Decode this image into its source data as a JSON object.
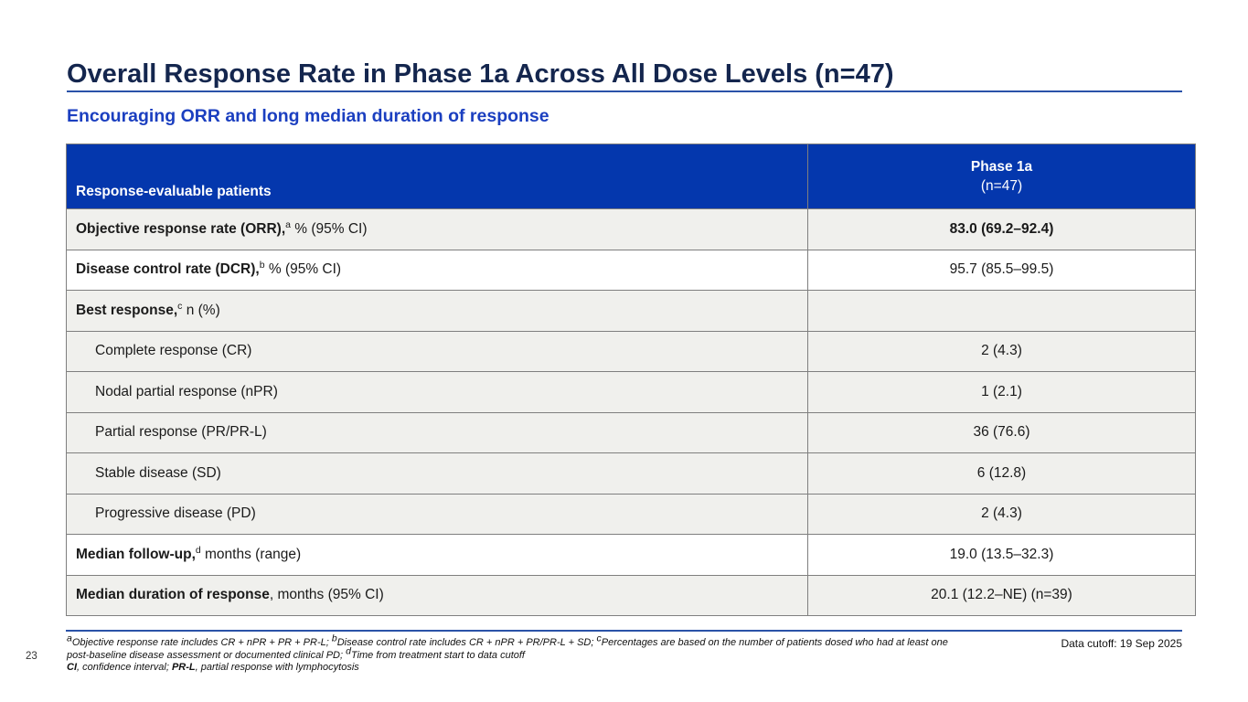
{
  "title": "Overall Response Rate in Phase 1a Across All Dose Levels (n=47)",
  "subtitle": "Encouraging ORR and long median duration of response",
  "table": {
    "header": {
      "left": "Response-evaluable patients",
      "right_line1": "Phase 1a",
      "right_line2": "(n=47)"
    },
    "rows": [
      {
        "segments": [
          {
            "t": "bold",
            "v": "Objective response rate (ORR),"
          },
          {
            "t": "sup",
            "v": "a"
          },
          {
            "t": "text",
            "v": " % (95% CI)"
          }
        ],
        "value": "83.0 (69.2–92.4)",
        "value_bold": true,
        "shade": "gray",
        "indent": false
      },
      {
        "segments": [
          {
            "t": "bold",
            "v": "Disease control rate (DCR),"
          },
          {
            "t": "sup",
            "v": "b"
          },
          {
            "t": "text",
            "v": " % (95% CI)"
          }
        ],
        "value": "95.7 (85.5–99.5)",
        "value_bold": false,
        "shade": "white",
        "indent": false
      },
      {
        "segments": [
          {
            "t": "bold",
            "v": "Best response,"
          },
          {
            "t": "sup",
            "v": "c"
          },
          {
            "t": "text",
            "v": " n (%)"
          }
        ],
        "value": "",
        "value_bold": false,
        "shade": "gray",
        "indent": false
      },
      {
        "segments": [
          {
            "t": "text",
            "v": "Complete response (CR)"
          }
        ],
        "value": "2 (4.3)",
        "value_bold": false,
        "shade": "gray",
        "indent": true
      },
      {
        "segments": [
          {
            "t": "text",
            "v": "Nodal partial response (nPR)"
          }
        ],
        "value": "1 (2.1)",
        "value_bold": false,
        "shade": "gray",
        "indent": true
      },
      {
        "segments": [
          {
            "t": "text",
            "v": "Partial response (PR/PR-L)"
          }
        ],
        "value": "36 (76.6)",
        "value_bold": false,
        "shade": "gray",
        "indent": true
      },
      {
        "segments": [
          {
            "t": "text",
            "v": "Stable disease (SD)"
          }
        ],
        "value": "6 (12.8)",
        "value_bold": false,
        "shade": "gray",
        "indent": true
      },
      {
        "segments": [
          {
            "t": "text",
            "v": "Progressive disease (PD)"
          }
        ],
        "value": "2 (4.3)",
        "value_bold": false,
        "shade": "gray",
        "indent": true
      },
      {
        "segments": [
          {
            "t": "bold",
            "v": "Median follow-up,"
          },
          {
            "t": "sup",
            "v": "d"
          },
          {
            "t": "text",
            "v": " months (range)"
          }
        ],
        "value": "19.0 (13.5–32.3)",
        "value_bold": false,
        "shade": "white",
        "indent": false
      },
      {
        "segments": [
          {
            "t": "bold",
            "v": "Median duration of response"
          },
          {
            "t": "text",
            "v": ", months (95% CI)"
          }
        ],
        "value": "20.1 (12.2–NE) (n=39)",
        "value_bold": false,
        "shade": "gray",
        "indent": false
      }
    ]
  },
  "footnotes": {
    "line1": [
      {
        "t": "sup",
        "v": "a"
      },
      {
        "t": "text",
        "v": "Objective response rate includes CR + nPR + PR + PR-L; "
      },
      {
        "t": "sup",
        "v": "b"
      },
      {
        "t": "text",
        "v": "Disease control rate includes CR + nPR + PR/PR-L + SD; "
      },
      {
        "t": "sup",
        "v": "c"
      },
      {
        "t": "text",
        "v": "Percentages are based on the number of patients dosed who had at least one"
      }
    ],
    "line2": [
      {
        "t": "text",
        "v": "post-baseline disease assessment or documented clinical PD; "
      },
      {
        "t": "sup",
        "v": "d"
      },
      {
        "t": "text",
        "v": "Time from treatment start to data cutoff"
      }
    ],
    "line3": [
      {
        "t": "bold",
        "v": "CI"
      },
      {
        "t": "text",
        "v": ", confidence interval; "
      },
      {
        "t": "bold",
        "v": "PR-L"
      },
      {
        "t": "text",
        "v": ", partial response with lymphocytosis"
      }
    ]
  },
  "data_cutoff": "Data cutoff: 19 Sep 2025",
  "page_number": "23",
  "colors": {
    "header_bg": "#0437AD",
    "title": "#14264E",
    "subtitle": "#1B3FC0",
    "row_gray": "#F0F0ED",
    "accent_line": "#2A52A8",
    "border": "#7F7F7F"
  }
}
